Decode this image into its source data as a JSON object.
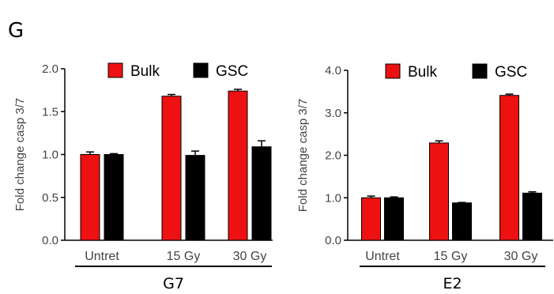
{
  "panel_label": "G",
  "chart_data": [
    {
      "type": "bar",
      "title": "",
      "group_label": "G7",
      "xlabel": "",
      "ylabel": "Fold change casp 3/7",
      "ylim": [
        0,
        2.0
      ],
      "yticks": [
        "0.0",
        "0.5",
        "1.0",
        "1.5",
        "2.0"
      ],
      "ytick_values": [
        0,
        0.5,
        1.0,
        1.5,
        2.0
      ],
      "categories": [
        "Untret",
        "15 Gy",
        "30 Gy"
      ],
      "series": [
        {
          "name": "Bulk",
          "color": "#ee1111",
          "values": [
            1.0,
            1.68,
            1.74
          ],
          "errors": [
            0.03,
            0.02,
            0.02
          ]
        },
        {
          "name": "GSC",
          "color": "#000000",
          "values": [
            1.0,
            0.99,
            1.09
          ],
          "errors": [
            0.01,
            0.05,
            0.07
          ]
        }
      ],
      "legend": "top"
    },
    {
      "type": "bar",
      "title": "",
      "group_label": "E2",
      "xlabel": "",
      "ylabel": "Fold change casp 3/7",
      "ylim": [
        0,
        4.0
      ],
      "yticks": [
        "0.0",
        "1.0",
        "2.0",
        "3.0",
        "4.0"
      ],
      "ytick_values": [
        0,
        1.0,
        2.0,
        3.0,
        4.0
      ],
      "categories": [
        "Untret",
        "15 Gy",
        "30 Gy"
      ],
      "series": [
        {
          "name": "Bulk",
          "color": "#ee1111",
          "values": [
            1.0,
            2.29,
            3.41
          ],
          "errors": [
            0.04,
            0.05,
            0.03
          ]
        },
        {
          "name": "GSC",
          "color": "#000000",
          "values": [
            1.0,
            0.88,
            1.11
          ],
          "errors": [
            0.02,
            0.01,
            0.03
          ]
        }
      ],
      "legend": "top"
    }
  ]
}
